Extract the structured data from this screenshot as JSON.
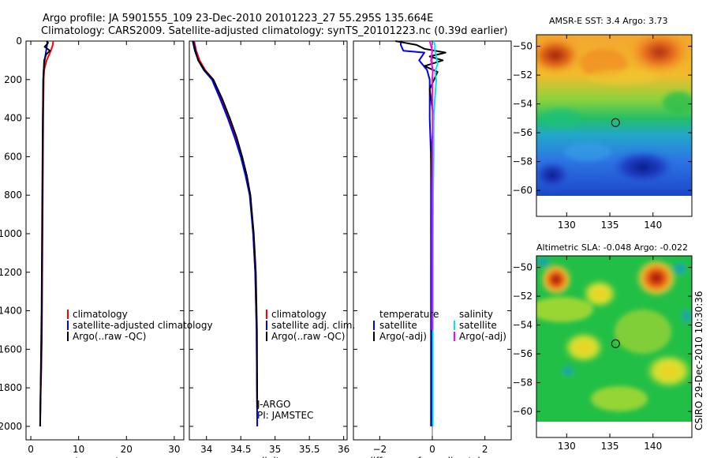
{
  "header": {
    "line1": "Argo profile: JA 5901555_109 23-Dec-2010 20101223_27 55.295S 135.664E",
    "line2": "Climatology: CARS2009. Satellite-adjusted climatology: synTS_20101223.nc (0.39d earlier)"
  },
  "side_credit": "CSIRO 29-Dec-2010 10:30:36",
  "colors": {
    "climatology": "#ff0000",
    "satellite": "#0000ff",
    "argo": "#000000",
    "sal_satellite": "#00e5ee",
    "sal_argo": "#ff00ff"
  },
  "chart_data": [
    {
      "type": "line",
      "id": "temperature",
      "xlabel": "temperature",
      "ylabel": "",
      "xlim": [
        -1,
        32
      ],
      "ylim": [
        0,
        2070
      ],
      "y_reversed": true,
      "xticks": [
        0,
        10,
        20,
        30
      ],
      "yticks": [
        0,
        200,
        400,
        600,
        800,
        1000,
        1200,
        1400,
        1600,
        1800,
        2000
      ],
      "legend": [
        "climatology",
        "satellite-adjusted climatology",
        "Argo(..raw -QC)"
      ],
      "series": [
        {
          "name": "climatology",
          "color": "#ff0000",
          "x": [
            4.7,
            4.6,
            4.2,
            3.3,
            2.8,
            2.7,
            2.6,
            2.55,
            2.5,
            2.45,
            2.4,
            2.35,
            2.3,
            2.2,
            2.1,
            2.0,
            1.95
          ],
          "depth": [
            0,
            20,
            50,
            100,
            150,
            200,
            400,
            600,
            800,
            1000,
            1200,
            1400,
            1550,
            1700,
            1800,
            1900,
            2000
          ]
        },
        {
          "name": "satellite-adjusted climatology",
          "color": "#0000ff",
          "x": [
            3.5,
            3.4,
            3.2,
            2.9,
            2.7,
            2.6,
            2.55,
            2.5,
            2.45,
            2.4,
            2.35,
            2.3,
            2.25,
            2.15,
            2.05,
            2.0,
            1.95
          ],
          "depth": [
            0,
            20,
            50,
            100,
            150,
            200,
            400,
            600,
            800,
            1000,
            1200,
            1400,
            1550,
            1700,
            1800,
            1900,
            2000
          ]
        },
        {
          "name": "Argo(..raw -QC)",
          "color": "#000000",
          "x": [
            3.3,
            3.6,
            2.9,
            4.0,
            3.2,
            2.8,
            2.7,
            2.6,
            2.5,
            2.45,
            2.4,
            2.35,
            2.3,
            2.25,
            2.15,
            2.05,
            2.0,
            1.95
          ],
          "depth": [
            0,
            10,
            30,
            50,
            70,
            100,
            150,
            200,
            400,
            600,
            800,
            1000,
            1200,
            1400,
            1600,
            1800,
            1900,
            2000
          ]
        }
      ]
    },
    {
      "type": "line",
      "id": "salinity",
      "xlabel": "salinity",
      "ylabel": "",
      "xlim": [
        33.75,
        36.05
      ],
      "ylim": [
        0,
        2070
      ],
      "y_reversed": true,
      "xticks": [
        34,
        34.5,
        35,
        35.5,
        36
      ],
      "legend": [
        "climatology",
        "satellite adj. clim.",
        "Argo(..raw -QC)"
      ],
      "annotations": [
        "J-ARGO",
        "PI: JAMSTEC"
      ],
      "series": [
        {
          "name": "climatology",
          "color": "#ff0000",
          "x": [
            33.82,
            33.85,
            33.9,
            33.98,
            34.1,
            34.22,
            34.33,
            34.43,
            34.51,
            34.58,
            34.64,
            34.68,
            34.71,
            34.73,
            34.735,
            34.74
          ],
          "depth": [
            0,
            50,
            100,
            150,
            200,
            300,
            400,
            500,
            600,
            700,
            800,
            1000,
            1200,
            1500,
            1800,
            2000
          ]
        },
        {
          "name": "satellite adj. clim.",
          "color": "#0000ff",
          "x": [
            33.81,
            33.84,
            33.88,
            33.96,
            34.08,
            34.2,
            34.31,
            34.41,
            34.5,
            34.57,
            34.63,
            34.68,
            34.71,
            34.73,
            34.735,
            34.74
          ],
          "depth": [
            0,
            50,
            100,
            150,
            200,
            300,
            400,
            500,
            600,
            700,
            800,
            1000,
            1200,
            1500,
            1800,
            2000
          ]
        },
        {
          "name": "Argo(..raw -QC)",
          "color": "#000000",
          "x": [
            33.8,
            33.83,
            33.88,
            33.97,
            34.1,
            34.23,
            34.34,
            34.44,
            34.52,
            34.59,
            34.64,
            34.69,
            34.72,
            34.735,
            34.74
          ],
          "depth": [
            0,
            50,
            100,
            150,
            200,
            300,
            400,
            500,
            600,
            700,
            800,
            1000,
            1200,
            1500,
            1900
          ]
        }
      ]
    },
    {
      "type": "line",
      "id": "difference",
      "xlabel": "difference from climatology",
      "ylabel": "",
      "xlim": [
        -3,
        3
      ],
      "ylim": [
        0,
        2070
      ],
      "y_reversed": true,
      "xticks": [
        -2,
        0,
        2
      ],
      "legend_temperature": {
        "title": "temperature",
        "items": [
          "satellite",
          "Argo(-adj)"
        ]
      },
      "legend_salinity": {
        "title": "salinity",
        "items": [
          "satellite",
          "Argo(-adj)"
        ]
      },
      "series": [
        {
          "name": "temperature satellite",
          "color": "#0000ff",
          "x": [
            -1.2,
            -1.2,
            -1.1,
            -0.3,
            -0.5,
            -0.2,
            -0.1,
            -0.1,
            -0.05,
            -0.05,
            -0.05,
            -0.05,
            -0.05
          ],
          "depth": [
            0,
            20,
            50,
            60,
            100,
            150,
            200,
            400,
            600,
            800,
            1200,
            1600,
            2000
          ]
        },
        {
          "name": "temperature Argo(-adj)",
          "color": "#000000",
          "x": [
            -1.4,
            -0.6,
            -0.3,
            0.5,
            -0.1,
            0.4,
            -0.3,
            0.2,
            -0.1,
            0.05,
            -0.05,
            0.0,
            0.0,
            0.0,
            0.0
          ],
          "depth": [
            0,
            20,
            40,
            60,
            80,
            100,
            130,
            160,
            250,
            400,
            600,
            800,
            1200,
            1600,
            2000
          ]
        },
        {
          "name": "salinity satellite",
          "color": "#00e5ee",
          "x": [
            0.05,
            0.1,
            0.1,
            0.15,
            0.2,
            0.1,
            0.15,
            0.1,
            0.05,
            0.05,
            0.03,
            0.02,
            0.02,
            0.02
          ],
          "depth": [
            0,
            20,
            50,
            80,
            120,
            160,
            200,
            300,
            400,
            600,
            800,
            1200,
            1600,
            2000
          ]
        },
        {
          "name": "salinity Argo(-adj)",
          "color": "#ff00ff",
          "x": [
            -0.1,
            0.0,
            -0.05,
            0.02,
            0.0,
            0.01,
            0.0,
            0.0
          ],
          "depth": [
            0,
            50,
            100,
            150,
            200,
            400,
            800,
            1500
          ]
        }
      ]
    },
    {
      "type": "heatmap",
      "id": "sst",
      "title": "AMSR-E SST: 3.4 Argo: 3.73",
      "xlim": [
        126.5,
        144.5
      ],
      "ylim": [
        -61.8,
        -49.2
      ],
      "xticks": [
        130,
        135,
        140
      ],
      "yticks": [
        -50,
        -52,
        -54,
        -56,
        -58,
        -60
      ],
      "marker": {
        "lon": 135.664,
        "lat": -55.295
      }
    },
    {
      "type": "heatmap",
      "id": "sla",
      "title": "Altimetric SLA: -0.048 Argo: -0.022",
      "xlim": [
        126.5,
        144.5
      ],
      "ylim": [
        -61.8,
        -49.2
      ],
      "xticks": [
        130,
        135,
        140
      ],
      "yticks": [
        -50,
        -52,
        -54,
        -56,
        -58,
        -60
      ],
      "marker": {
        "lon": 135.664,
        "lat": -55.295
      }
    }
  ]
}
